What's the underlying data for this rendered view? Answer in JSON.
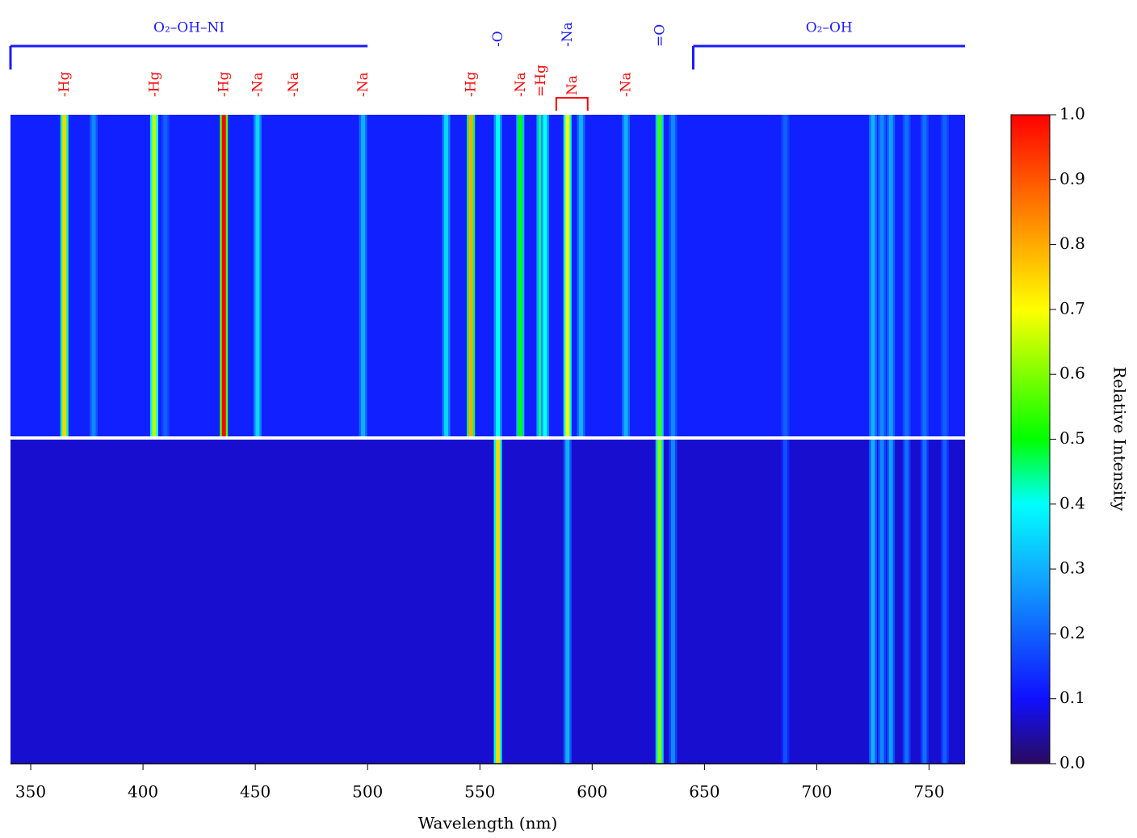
{
  "chart_data": {
    "type": "spectrum",
    "xlabel": "Wavelength (nm)",
    "xlim": [
      341,
      766
    ],
    "xticks": [
      350,
      400,
      450,
      500,
      550,
      600,
      650,
      700,
      750
    ],
    "panels": [
      {
        "background": 0.12,
        "x": [
          365,
          378,
          405,
          410,
          436,
          451,
          498,
          535,
          546,
          558,
          568,
          577,
          579,
          589,
          595,
          615,
          630,
          636,
          686,
          725,
          729,
          733,
          740,
          748,
          757
        ],
        "values": [
          0.75,
          0.25,
          0.65,
          0.2,
          1.0,
          0.35,
          0.3,
          0.35,
          0.8,
          0.4,
          0.5,
          0.45,
          0.4,
          0.7,
          0.3,
          0.3,
          0.55,
          0.25,
          0.2,
          0.3,
          0.25,
          0.28,
          0.22,
          0.22,
          0.2
        ]
      },
      {
        "background": 0.07,
        "x": [
          558,
          589,
          630,
          636,
          686,
          725,
          729,
          733,
          740,
          748,
          757
        ],
        "values": [
          0.75,
          0.3,
          0.6,
          0.25,
          0.18,
          0.3,
          0.25,
          0.28,
          0.22,
          0.22,
          0.2
        ]
      }
    ],
    "annotations": [
      {
        "text": "O₂–OH–NI",
        "x": [
          341,
          500
        ],
        "color": "#1a1aff"
      },
      {
        "text": "O₂–OH",
        "x": [
          645,
          766
        ],
        "color": "#1a1aff"
      },
      {
        "text": "-O",
        "x": 558,
        "color": "#1a1aff"
      },
      {
        "text": "-Na",
        "x": 589,
        "color": "#1a1aff"
      },
      {
        "text": "=O",
        "x": 630,
        "color": "#1a1aff"
      },
      {
        "text": "-Hg",
        "x": 365,
        "color": "#ff0000"
      },
      {
        "text": "-Hg",
        "x": 405,
        "color": "#ff0000"
      },
      {
        "text": "-Hg",
        "x": 436,
        "color": "#ff0000"
      },
      {
        "text": "-Na",
        "x": 451,
        "color": "#ff0000"
      },
      {
        "text": "-Na",
        "x": 467,
        "color": "#ff0000"
      },
      {
        "text": "-Na",
        "x": 498,
        "color": "#ff0000"
      },
      {
        "text": "-Hg",
        "x": 546,
        "color": "#ff0000"
      },
      {
        "text": "-Na",
        "x": 568,
        "color": "#ff0000"
      },
      {
        "text": "=Hg",
        "x": 577,
        "color": "#ff0000"
      },
      {
        "text": "Na",
        "x": [
          584,
          598
        ],
        "color": "#ff0000"
      },
      {
        "text": "-Na",
        "x": 615,
        "color": "#ff0000"
      }
    ],
    "colorbar": {
      "label": "Relative Intensity",
      "ylim": [
        0,
        1
      ],
      "yticks": [
        {
          "value": 0,
          "label": "0.0"
        },
        0.1,
        0.2,
        0.3,
        0.4,
        0.5,
        0.6,
        0.7,
        0.8,
        0.9,
        {
          "value": 1,
          "label": "1.0"
        }
      ]
    }
  }
}
